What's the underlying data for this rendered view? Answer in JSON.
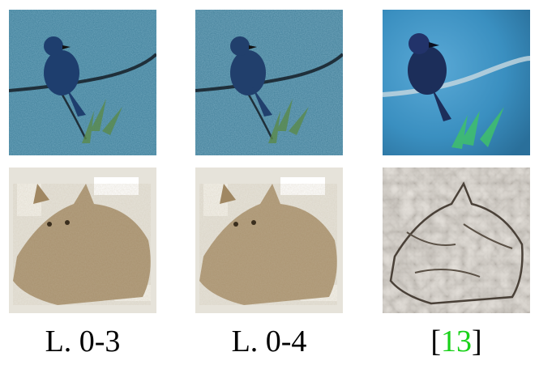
{
  "figure": {
    "columns": [
      {
        "label": "L. 0-3"
      },
      {
        "label": "L. 0-4"
      },
      {
        "label_open": "[",
        "label_ref": "13",
        "label_close": "]"
      }
    ],
    "images": [
      {
        "row": 0,
        "col": 0,
        "subject": "bird",
        "style": "texture-stylized"
      },
      {
        "row": 0,
        "col": 1,
        "subject": "bird",
        "style": "texture-stylized"
      },
      {
        "row": 0,
        "col": 2,
        "subject": "bird",
        "style": "smooth-stylized"
      },
      {
        "row": 1,
        "col": 0,
        "subject": "cat",
        "style": "texture-stylized"
      },
      {
        "row": 1,
        "col": 1,
        "subject": "cat",
        "style": "texture-stylized"
      },
      {
        "row": 1,
        "col": 2,
        "subject": "cat",
        "style": "embossed-stylized"
      }
    ],
    "colors": {
      "citation": "#19d119",
      "text": "#000000",
      "bird_bg_textured": "#3f7f9a",
      "bird_bg_smooth": "#3a8fc0",
      "cat_fur": "#a9926f",
      "cat_bg": "#e6e3da"
    }
  }
}
